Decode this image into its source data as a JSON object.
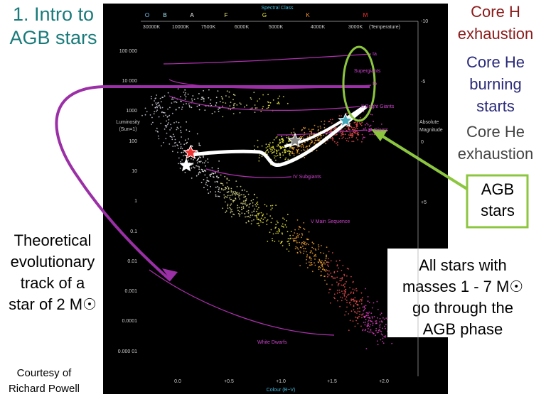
{
  "title": [
    "1. Intro to",
    "AGB stars"
  ],
  "phases": [
    [
      "Core H",
      "exhaustion"
    ],
    [
      "Core He",
      "burning",
      "starts"
    ],
    [
      "Core He",
      "exhaustion"
    ]
  ],
  "agb_box": [
    "AGB",
    "stars"
  ],
  "note": [
    "All stars with",
    "masses 1 - 7 M☉",
    "go through the",
    "AGB phase"
  ],
  "track_label": [
    "Theoretical",
    "evolutionary",
    "track of a",
    "star of 2 M☉"
  ],
  "credit": [
    "Courtesy of",
    "Richard Powell"
  ],
  "diagram": {
    "spectral_class_title": "Spectral Class",
    "spectral_classes": [
      "O",
      "B",
      "A",
      "F",
      "G",
      "K",
      "M"
    ],
    "temperatures": [
      "30000K",
      "10000K",
      "7500K",
      "6000K",
      "5000K",
      "4000K",
      "3000K",
      "(Temperature)"
    ],
    "luminosity_title": [
      "Luminosity",
      "(Sun=1)"
    ],
    "luminosity_ticks": [
      "100 000",
      "10 000",
      "1000",
      "100",
      "10",
      "1",
      "0.1",
      "0.01",
      "0.001",
      "0.0001",
      "0.000 01"
    ],
    "magnitude_title": [
      "Absolute",
      "Magnitude"
    ],
    "magnitude_ticks": [
      "-10",
      "-5",
      "0",
      "+5"
    ],
    "colour_ticks": [
      "0.0",
      "+0.5",
      "+1.0",
      "+1.5",
      "+2.0"
    ],
    "colour_title": "Colour (B−V)",
    "classes": [
      "Ia",
      "Supergiants",
      "Ib",
      "II Bright Giants",
      "III Giants",
      "IV Subgiants",
      "V Main Sequence",
      "White Dwarfs"
    ]
  }
}
